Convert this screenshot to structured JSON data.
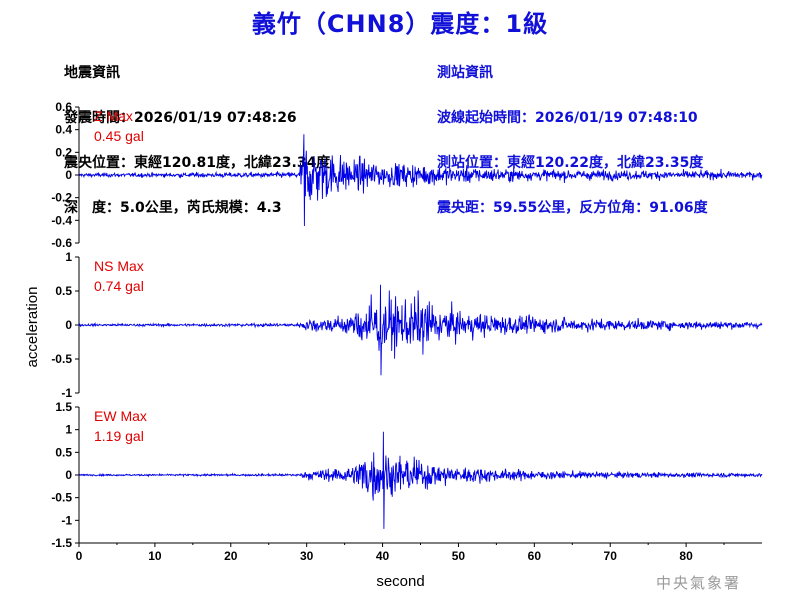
{
  "title": "義竹（CHN8）震度：1級",
  "earthquake_info": {
    "header": "地震資訊",
    "origin_time": "發震時間：2026/01/19 07:48:26",
    "epicenter": "震央位置：東經120.81度，北緯23.34度",
    "depth_mag": "深　度：5.0公里，芮氏規模：4.3"
  },
  "station_info": {
    "header": "測站資訊",
    "wave_start": "波線起始時間：2026/01/19 07:48:10",
    "location": "測站位置：東經120.22度，北緯23.35度",
    "distance": "震央距：59.55公里，反方位角：91.06度"
  },
  "agency": "中央氣象署",
  "colors": {
    "title": "#1010d8",
    "trace": "#0000e6",
    "label": "#e00000",
    "station": "#1010d8"
  },
  "chart_data": [
    {
      "type": "line",
      "component": "Z",
      "label_line1": "Z Max",
      "label_line2": "0.45 gal",
      "ylim": [
        -0.6,
        0.6
      ],
      "yticks": [
        -0.6,
        -0.4,
        -0.2,
        0,
        0.2,
        0.4,
        0.6
      ],
      "ytick_labels": [
        "-0.6",
        "-0.4",
        "-0.2",
        "0",
        "0.2",
        "0.4",
        "0.6"
      ],
      "max_abs": 0.45,
      "noise": 0.02,
      "p_arrival": 29.5,
      "s_arrival": 29.6,
      "peak_time": 29.7,
      "envelope": [
        [
          0,
          0.02
        ],
        [
          29,
          0.03
        ],
        [
          29.6,
          0.42
        ],
        [
          31,
          0.32
        ],
        [
          35,
          0.2
        ],
        [
          40,
          0.13
        ],
        [
          45,
          0.12
        ],
        [
          50,
          0.09
        ],
        [
          60,
          0.06
        ],
        [
          75,
          0.05
        ],
        [
          90,
          0.04
        ]
      ]
    },
    {
      "type": "line",
      "component": "NS",
      "label_line1": "NS Max",
      "label_line2": "0.74 gal",
      "ylim": [
        -1,
        1
      ],
      "yticks": [
        -1,
        -0.5,
        0,
        0.5,
        1
      ],
      "ytick_labels": [
        "-1",
        "-0.5",
        "0",
        "0.5",
        "1"
      ],
      "max_abs": 0.74,
      "noise": 0.02,
      "peak_time": 39.8,
      "envelope": [
        [
          0,
          0.02
        ],
        [
          29,
          0.03
        ],
        [
          30,
          0.12
        ],
        [
          33,
          0.14
        ],
        [
          36,
          0.2
        ],
        [
          38,
          0.5
        ],
        [
          40,
          0.55
        ],
        [
          43,
          0.42
        ],
        [
          45,
          0.55
        ],
        [
          48,
          0.3
        ],
        [
          52,
          0.22
        ],
        [
          60,
          0.15
        ],
        [
          70,
          0.1
        ],
        [
          80,
          0.08
        ],
        [
          90,
          0.06
        ]
      ]
    },
    {
      "type": "line",
      "component": "EW",
      "label_line1": "EW Max",
      "label_line2": "1.19 gal",
      "ylim": [
        -1.5,
        1.5
      ],
      "yticks": [
        -1.5,
        -1,
        -0.5,
        0,
        0.5,
        1,
        1.5
      ],
      "ytick_labels": [
        "-1.5",
        "-1",
        "-0.5",
        "0",
        "0.5",
        "1",
        "1.5"
      ],
      "max_abs": 1.19,
      "noise": 0.02,
      "peak_time": 40.2,
      "envelope": [
        [
          0,
          0.02
        ],
        [
          29,
          0.03
        ],
        [
          30,
          0.12
        ],
        [
          33,
          0.18
        ],
        [
          36,
          0.22
        ],
        [
          38,
          0.7
        ],
        [
          41,
          0.55
        ],
        [
          44,
          0.45
        ],
        [
          47,
          0.3
        ],
        [
          52,
          0.2
        ],
        [
          60,
          0.12
        ],
        [
          70,
          0.08
        ],
        [
          80,
          0.06
        ],
        [
          90,
          0.05
        ]
      ]
    }
  ],
  "x_axis": {
    "label": "second",
    "xlim": [
      0,
      90
    ],
    "ticks": [
      0,
      10,
      20,
      30,
      40,
      50,
      60,
      70,
      80
    ],
    "tick_labels": [
      "0",
      "10",
      "20",
      "30",
      "40",
      "50",
      "60",
      "70",
      "80"
    ]
  },
  "y_axis_label": "acceleration"
}
